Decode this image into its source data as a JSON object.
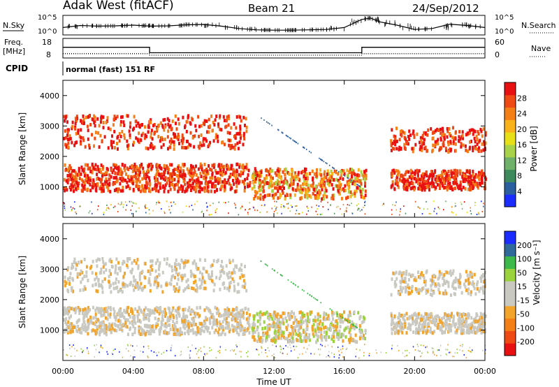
{
  "header": {
    "station": "Adak West (fitACF)",
    "beam": "Beam 21",
    "date": "24/Sep/2012"
  },
  "top_panels": {
    "nsky_label": "N.Sky",
    "nsearch_label": "N.Search",
    "nsky_ticks": [
      "10^5",
      "10^0"
    ],
    "nsearch_ticks": [
      "10^5",
      "10^0"
    ],
    "freq_label": "Freq.",
    "freq_unit": "[MHz]",
    "freq_ticks": [
      "18",
      "8"
    ],
    "nave_label": "Nave",
    "nave_ticks": [
      "60",
      "0"
    ],
    "cpid_label": "CPID",
    "cpid_text": "normal (fast) 151 RF"
  },
  "colors": {
    "power": [
      "#1b2cff",
      "#2c5fa0",
      "#3e8a5c",
      "#6fb06a",
      "#a8d24a",
      "#e7e017",
      "#f9b21a",
      "#f57f17",
      "#f04a14",
      "#e81010"
    ],
    "velocity": [
      "#e81010",
      "#f04a14",
      "#f57f17",
      "#f2a42b",
      "#c9c9c2",
      "#c9c9c2",
      "#9ad33b",
      "#3db84a",
      "#2f6a9a",
      "#1b2cff"
    ]
  },
  "chart_data": [
    {
      "type": "line",
      "title": "N.Sky / N.Search",
      "xlabel": "",
      "ylabel": "",
      "x_hours": [
        0,
        1,
        2,
        3,
        4,
        5,
        6,
        7,
        8,
        9,
        10,
        11,
        12,
        13,
        14,
        15,
        16,
        17,
        17.5,
        18,
        19,
        20,
        21,
        22,
        23,
        24
      ],
      "values_log10": [
        1.8,
        2.4,
        2.2,
        2.3,
        2.5,
        2.2,
        2.3,
        2.6,
        2.7,
        2.2,
        1.5,
        1.1,
        1.0,
        1.0,
        1.1,
        1.2,
        1.8,
        4.2,
        4.6,
        3.5,
        2.5,
        1.2,
        1.5,
        2.8,
        2.4,
        1.8
      ]
    },
    {
      "type": "line",
      "title": "Freq. / Nave",
      "series": [
        {
          "name": "Freq.",
          "x_hours": [
            0,
            4.93,
            4.93,
            17,
            17,
            24
          ],
          "values": [
            13.5,
            13.5,
            10.5,
            10.5,
            13.5,
            13.5
          ]
        },
        {
          "name": "Nave",
          "x_hours": [
            0,
            4.93,
            4.93,
            17,
            17,
            24
          ],
          "values": [
            12,
            12,
            7,
            7,
            12,
            12
          ]
        }
      ],
      "freq_ylim": [
        8,
        18
      ],
      "nave_ylim": [
        0,
        60
      ]
    },
    {
      "type": "heatmap",
      "title": "",
      "ylabel": "Slant Range [km]",
      "ylim": [
        0,
        4500
      ],
      "yticks": [
        "1000",
        "2000",
        "3000",
        "4000"
      ],
      "colorbar_label": "Power [dB]",
      "colorbar_ticks": [
        "4",
        "8",
        "12",
        "16",
        "20",
        "24",
        "28"
      ]
    },
    {
      "type": "heatmap",
      "title": "",
      "xlabel": "Time UT",
      "ylabel": "Slant Range [km]",
      "xlim_hours": [
        0,
        24
      ],
      "xticks": [
        "00:00",
        "04:00",
        "08:00",
        "12:00",
        "16:00",
        "20:00",
        "00:00"
      ],
      "ylim": [
        0,
        4500
      ],
      "yticks": [
        "1000",
        "2000",
        "3000",
        "4000"
      ],
      "colorbar_label": "Velocity [m s⁻¹]",
      "colorbar_ticks": [
        "200",
        "100",
        "50",
        "15",
        "-15",
        "-50",
        "-100",
        "-200"
      ]
    }
  ]
}
